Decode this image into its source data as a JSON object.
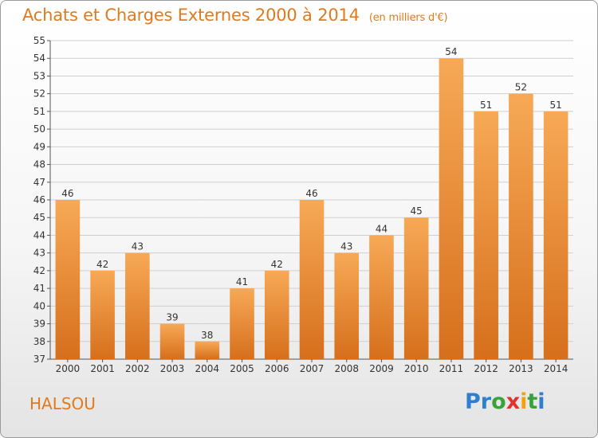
{
  "header": {
    "title": "Achats et Charges Externes 2000 à 2014",
    "unit": "(en milliers d'€)"
  },
  "footer": {
    "place": "HALSOU",
    "logo_letters": [
      "P",
      "r",
      "o",
      "x",
      "i",
      "t",
      "i"
    ],
    "logo_colors": [
      "#2e7fd1",
      "#2e7fd1",
      "#3aa23a",
      "#e0312c",
      "#f2a20c",
      "#3aa23a",
      "#2e7fd1"
    ]
  },
  "colors": {
    "accent": "#e07a1e",
    "bar_light": "#f5a24c",
    "bar_dark": "#d9731f",
    "grid": "#cfcfcf"
  },
  "chart_data": {
    "type": "bar",
    "title": "Achats et Charges Externes 2000 à 2014",
    "subtitle": "(en milliers d'€)",
    "xlabel": "",
    "ylabel": "",
    "categories": [
      "2000",
      "2001",
      "2002",
      "2003",
      "2004",
      "2005",
      "2006",
      "2007",
      "2008",
      "2009",
      "2010",
      "2011",
      "2012",
      "2013",
      "2014"
    ],
    "values": [
      46,
      42,
      43,
      39,
      38,
      41,
      42,
      46,
      43,
      44,
      45,
      54,
      51,
      52,
      51
    ],
    "ylim": [
      37,
      55
    ],
    "ytick_step": 1,
    "grid": true,
    "data_labels": true
  }
}
